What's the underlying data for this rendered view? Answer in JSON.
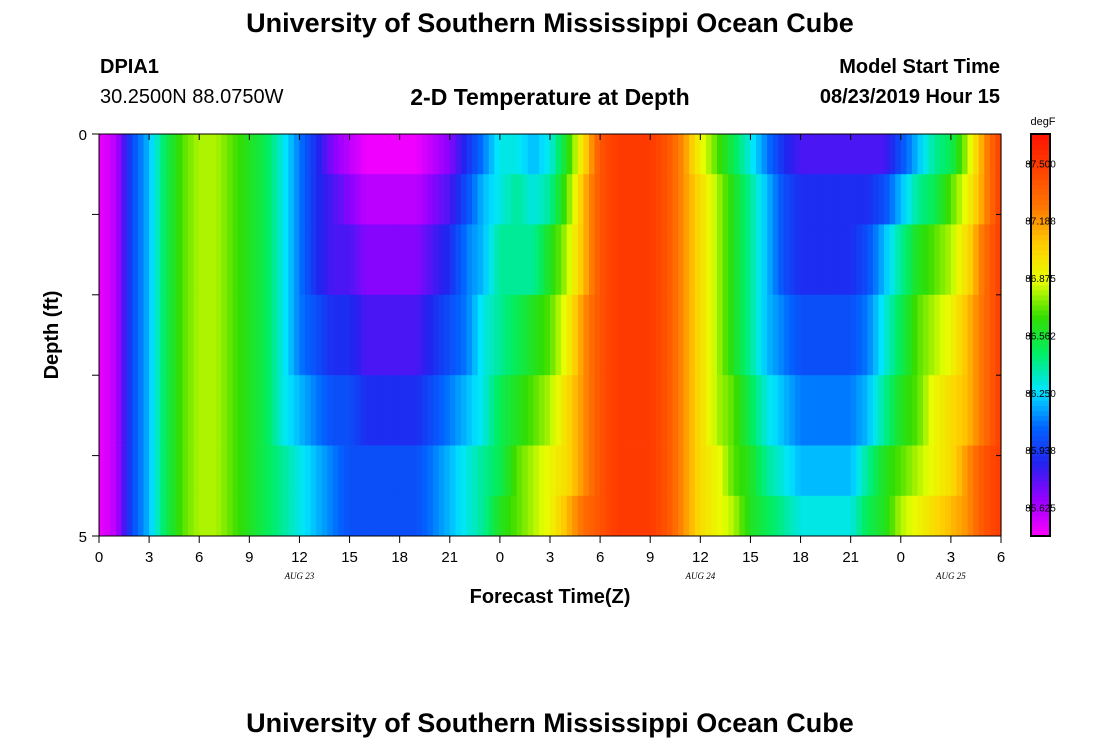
{
  "header": {
    "title": "University of Southern Mississippi Ocean Cube",
    "station_id": "DPIA1",
    "station_coords": "30.2500N 88.0750W",
    "model_start_label": "Model Start Time",
    "model_start_value": "08/23/2019 Hour 15"
  },
  "footer": {
    "title": "University of Southern Mississippi Ocean Cube"
  },
  "chart_data": {
    "type": "heatmap",
    "title": "2-D Temperature at Depth",
    "xlabel": "Forecast Time(Z)",
    "ylabel": "Depth (ft)",
    "units": "degF",
    "x_tick_labels": [
      "0",
      "3",
      "6",
      "9",
      "12",
      "15",
      "18",
      "21",
      "0",
      "3",
      "6",
      "9",
      "12",
      "15",
      "18",
      "21",
      "0",
      "3",
      "6"
    ],
    "x_day_labels": [
      {
        "label": "AUG 23",
        "tick_index": 4
      },
      {
        "label": "AUG 24",
        "tick_index": 12
      },
      {
        "label": "AUG 25",
        "tick_index": 17
      }
    ],
    "y_range": [
      0,
      5
    ],
    "y_tick_labels": [
      "0",
      "5"
    ],
    "depth_levels_ft": [
      0.25,
      0.75,
      1.5,
      2.5,
      3.5,
      4.25,
      4.75
    ],
    "color_scale": {
      "min": 85.47,
      "max": 87.66,
      "labels": [
        "87.500",
        "87.188",
        "86.875",
        "86.562",
        "86.250",
        "85.938",
        "85.625"
      ],
      "label_values": [
        87.5,
        87.188,
        86.875,
        86.562,
        86.25,
        85.938,
        85.625
      ],
      "colors": [
        "#ff00ff",
        "#9900ff",
        "#2222ee",
        "#0066ff",
        "#00e5ff",
        "#00ee66",
        "#33dd00",
        "#e8ff00",
        "#ffcc00",
        "#ff7700",
        "#ff4400",
        "#ff1100"
      ]
    },
    "time_hours": [
      0,
      1,
      2,
      3,
      4,
      5,
      6,
      7,
      8,
      9,
      10,
      11,
      12,
      13,
      14,
      15,
      16,
      17,
      18,
      19,
      20,
      21,
      22,
      23,
      24,
      25,
      26,
      27,
      28,
      29,
      30,
      31,
      32,
      33,
      34,
      35,
      36,
      37,
      38,
      39,
      40,
      41,
      42,
      43,
      44,
      45,
      46,
      47,
      48,
      49,
      50,
      51,
      52,
      53,
      54
    ],
    "temperature_degF": [
      [
        85.5,
        85.6,
        86.0,
        86.2,
        86.5,
        86.7,
        86.8,
        86.8,
        86.7,
        86.6,
        86.5,
        86.3,
        86.1,
        85.9,
        85.7,
        85.6,
        85.5,
        85.5,
        85.5,
        85.5,
        85.6,
        85.7,
        85.9,
        86.1,
        86.3,
        86.3,
        86.2,
        86.3,
        86.6,
        87.0,
        87.4,
        87.5,
        87.5,
        87.5,
        87.4,
        87.2,
        86.9,
        86.7,
        86.5,
        86.3,
        86.1,
        85.9,
        85.8,
        85.8,
        85.8,
        85.8,
        85.8,
        85.8,
        86.0,
        86.2,
        86.4,
        86.5,
        86.8,
        87.2,
        87.5
      ],
      [
        85.5,
        85.6,
        86.0,
        86.2,
        86.5,
        86.7,
        86.8,
        86.8,
        86.7,
        86.6,
        86.5,
        86.3,
        86.1,
        85.9,
        85.8,
        85.7,
        85.6,
        85.6,
        85.6,
        85.6,
        85.7,
        85.8,
        86.0,
        86.2,
        86.3,
        86.4,
        86.3,
        86.4,
        86.7,
        87.1,
        87.4,
        87.5,
        87.5,
        87.5,
        87.4,
        87.2,
        87.0,
        86.8,
        86.6,
        86.4,
        86.2,
        86.0,
        85.9,
        85.9,
        85.9,
        85.9,
        85.9,
        86.0,
        86.2,
        86.4,
        86.5,
        86.7,
        86.9,
        87.2,
        87.5
      ],
      [
        85.5,
        85.6,
        86.0,
        86.2,
        86.5,
        86.7,
        86.8,
        86.8,
        86.7,
        86.6,
        86.5,
        86.3,
        86.1,
        85.9,
        85.8,
        85.8,
        85.7,
        85.7,
        85.7,
        85.7,
        85.8,
        85.9,
        86.1,
        86.2,
        86.4,
        86.4,
        86.4,
        86.6,
        86.8,
        87.1,
        87.4,
        87.5,
        87.5,
        87.5,
        87.4,
        87.2,
        87.0,
        86.8,
        86.6,
        86.4,
        86.2,
        86.0,
        85.9,
        85.9,
        85.9,
        85.9,
        86.0,
        86.2,
        86.4,
        86.6,
        86.7,
        86.8,
        87.0,
        87.3,
        87.5
      ],
      [
        85.5,
        85.6,
        86.0,
        86.2,
        86.5,
        86.7,
        86.8,
        86.8,
        86.7,
        86.6,
        86.5,
        86.3,
        86.1,
        86.0,
        85.9,
        85.9,
        85.8,
        85.8,
        85.8,
        85.8,
        85.9,
        86.0,
        86.1,
        86.3,
        86.4,
        86.5,
        86.6,
        86.7,
        86.9,
        87.2,
        87.4,
        87.5,
        87.5,
        87.5,
        87.4,
        87.2,
        87.0,
        86.8,
        86.6,
        86.4,
        86.2,
        86.1,
        86.0,
        86.0,
        86.0,
        86.0,
        86.1,
        86.3,
        86.5,
        86.7,
        86.8,
        86.9,
        87.1,
        87.3,
        87.5
      ],
      [
        85.5,
        85.6,
        86.0,
        86.2,
        86.5,
        86.7,
        86.8,
        86.8,
        86.7,
        86.6,
        86.5,
        86.3,
        86.2,
        86.1,
        86.0,
        86.0,
        85.9,
        85.9,
        85.9,
        85.9,
        86.0,
        86.1,
        86.2,
        86.3,
        86.5,
        86.6,
        86.7,
        86.8,
        87.0,
        87.2,
        87.4,
        87.5,
        87.5,
        87.5,
        87.4,
        87.2,
        87.0,
        86.8,
        86.7,
        86.5,
        86.3,
        86.2,
        86.1,
        86.1,
        86.1,
        86.1,
        86.2,
        86.4,
        86.6,
        86.7,
        86.9,
        87.0,
        87.1,
        87.3,
        87.5
      ],
      [
        85.5,
        85.6,
        86.0,
        86.2,
        86.5,
        86.7,
        86.8,
        86.8,
        86.7,
        86.6,
        86.5,
        86.4,
        86.3,
        86.2,
        86.1,
        86.0,
        86.0,
        86.0,
        86.0,
        86.0,
        86.1,
        86.2,
        86.3,
        86.4,
        86.5,
        86.7,
        86.8,
        86.9,
        87.0,
        87.2,
        87.4,
        87.5,
        87.5,
        87.5,
        87.4,
        87.2,
        87.0,
        86.9,
        86.7,
        86.6,
        86.4,
        86.3,
        86.2,
        86.2,
        86.2,
        86.2,
        86.4,
        86.6,
        86.7,
        86.8,
        86.9,
        87.0,
        87.2,
        87.4,
        87.5
      ],
      [
        85.5,
        85.6,
        86.0,
        86.2,
        86.5,
        86.7,
        86.8,
        86.8,
        86.7,
        86.6,
        86.5,
        86.4,
        86.3,
        86.2,
        86.1,
        86.0,
        86.0,
        86.0,
        86.0,
        86.0,
        86.1,
        86.2,
        86.3,
        86.4,
        86.6,
        86.7,
        86.8,
        86.9,
        87.1,
        87.3,
        87.4,
        87.5,
        87.5,
        87.5,
        87.4,
        87.2,
        87.0,
        86.9,
        86.8,
        86.6,
        86.5,
        86.4,
        86.3,
        86.3,
        86.3,
        86.3,
        86.5,
        86.6,
        86.8,
        86.9,
        87.0,
        87.1,
        87.2,
        87.4,
        87.5
      ]
    ]
  }
}
